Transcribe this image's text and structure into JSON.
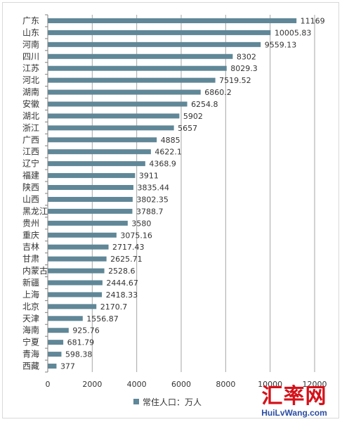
{
  "chart_data": {
    "type": "bar",
    "orientation": "horizontal",
    "categories": [
      "广东",
      "山东",
      "河南",
      "四川",
      "江苏",
      "河北",
      "湖南",
      "安徽",
      "湖北",
      "浙江",
      "广西",
      "江西",
      "辽宁",
      "福建",
      "陕西",
      "山西",
      "黑龙江",
      "贵州",
      "重庆",
      "吉林",
      "甘肃",
      "内蒙古",
      "新疆",
      "上海",
      "北京",
      "天津",
      "海南",
      "宁夏",
      "青海",
      "西藏"
    ],
    "series": [
      {
        "name": "常住人口：万人",
        "values": [
          11169,
          10005.83,
          9559.13,
          8302,
          8029.3,
          7519.52,
          6860.2,
          6254.8,
          5902,
          5657,
          4885,
          4622.1,
          4368.9,
          3911,
          3835.44,
          3802.35,
          3788.7,
          3580,
          3075.16,
          2717.43,
          2625.71,
          2528.6,
          2444.67,
          2418.33,
          2170.7,
          1556.87,
          925.76,
          681.79,
          598.38,
          377
        ],
        "labels": [
          "11169",
          "10005.83",
          "9559.13",
          "8302",
          "8029.3",
          "7519.52",
          "6860.2",
          "6254.8",
          "5902",
          "5657",
          "4885",
          "4622.1",
          "4368.9",
          "3911",
          "3835.44",
          "3802.35",
          "3788.7",
          "3580",
          "3075.16",
          "2717.43",
          "2625.71",
          "2528.6",
          "2444.67",
          "2418.33",
          "2170.7",
          "1556.87",
          "925.76",
          "681.79",
          "598.38",
          "377"
        ]
      }
    ],
    "x_ticks": [
      "0",
      "2000",
      "4000",
      "6000",
      "8000",
      "10000",
      "12000"
    ],
    "xlim": [
      0,
      12000
    ],
    "grid": "vertical",
    "legend_position": "bottom",
    "colors": {
      "bar": "#5f8797",
      "grid": "#a6a6a6",
      "axis": "#7f7f7f"
    }
  },
  "watermark": {
    "main": "汇率网",
    "url": "HuiLvWang.com"
  }
}
